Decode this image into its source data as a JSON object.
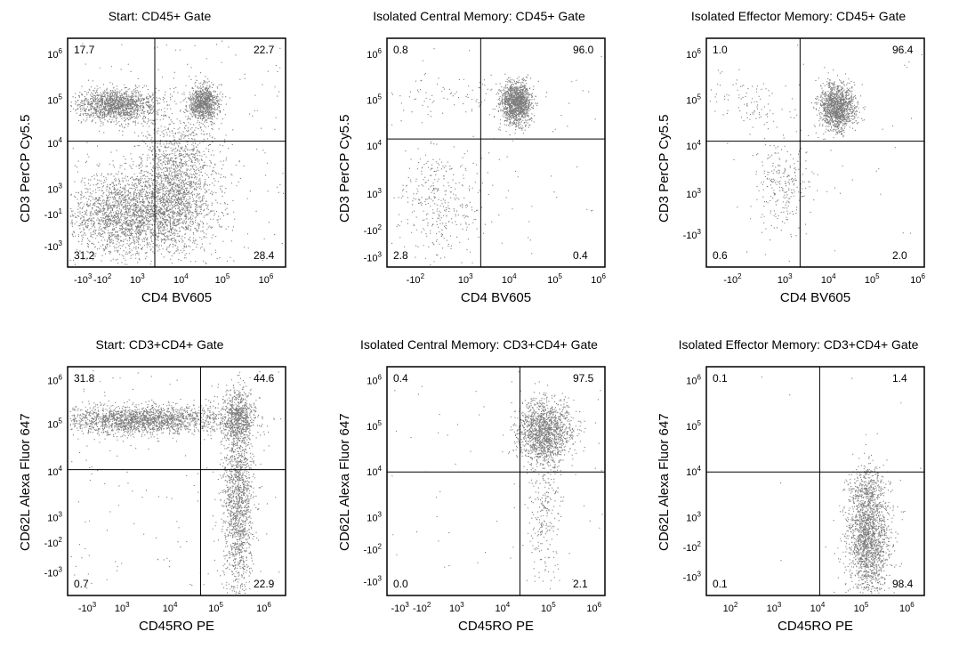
{
  "chart_data": [
    {
      "type": "scatter",
      "title": "Start: CD45+ Gate",
      "xlabel": "CD4 BV605",
      "ylabel": "CD3 PerCP Cy5.5",
      "x_ticks": [
        "-10^3",
        "-10^2",
        "10^3",
        "10^4",
        "10^5",
        "10^6"
      ],
      "y_ticks": [
        "10^6",
        "10^5",
        "10^4",
        "10^3",
        "-10^1",
        "-10^3"
      ],
      "quadrants": {
        "top_left": "17.7",
        "top_right": "22.7",
        "bottom_left": "31.2",
        "bottom_right": "28.4"
      }
    },
    {
      "type": "scatter",
      "title": "Isolated Central Memory: CD45+ Gate",
      "xlabel": "CD4 BV605",
      "ylabel": "CD3 PerCP Cy5.5",
      "x_ticks": [
        "-10^2",
        "10^3",
        "10^4",
        "10^5",
        "10^6"
      ],
      "y_ticks": [
        "10^6",
        "10^5",
        "10^4",
        "10^3",
        "-10^2",
        "-10^3"
      ],
      "quadrants": {
        "top_left": "0.8",
        "top_right": "96.0",
        "bottom_left": "2.8",
        "bottom_right": "0.4"
      }
    },
    {
      "type": "scatter",
      "title": "Isolated Effector Memory: CD45+ Gate",
      "xlabel": "CD4 BV605",
      "ylabel": "CD3 PerCP Cy5.5",
      "x_ticks": [
        "-10^2",
        "10^3",
        "10^4",
        "10^5",
        "10^6"
      ],
      "y_ticks": [
        "10^6",
        "10^5",
        "10^4",
        "10^3",
        "-10^3"
      ],
      "quadrants": {
        "top_left": "1.0",
        "top_right": "96.4",
        "bottom_left": "0.6",
        "bottom_right": "2.0"
      }
    },
    {
      "type": "scatter",
      "title": "Start: CD3+CD4+ Gate",
      "xlabel": "CD45RO PE",
      "ylabel": "CD62L Alexa Fluor 647",
      "x_ticks": [
        "-10^3",
        "10^3",
        "10^4",
        "10^5",
        "10^6"
      ],
      "y_ticks": [
        "10^6",
        "10^5",
        "10^4",
        "10^3",
        "-10^2",
        "-10^3"
      ],
      "quadrants": {
        "top_left": "31.8",
        "top_right": "44.6",
        "bottom_left": "0.7",
        "bottom_right": "22.9"
      }
    },
    {
      "type": "scatter",
      "title": "Isolated Central Memory: CD3+CD4+ Gate",
      "xlabel": "CD45RO PE",
      "ylabel": "CD62L Alexa Fluor 647",
      "x_ticks": [
        "-10^3",
        "-10^2",
        "10^3",
        "10^4",
        "10^5",
        "10^6"
      ],
      "y_ticks": [
        "10^6",
        "10^5",
        "10^4",
        "10^3",
        "-10^2",
        "-10^3"
      ],
      "quadrants": {
        "top_left": "0.4",
        "top_right": "97.5",
        "bottom_left": "0.0",
        "bottom_right": "2.1"
      }
    },
    {
      "type": "scatter",
      "title": "Isolated Effector Memory: CD3+CD4+ Gate",
      "xlabel": "CD45RO PE",
      "ylabel": "CD62L Alexa Fluor 647",
      "x_ticks": [
        "10^2",
        "10^3",
        "10^4",
        "10^5",
        "10^6"
      ],
      "y_ticks": [
        "10^6",
        "10^5",
        "10^4",
        "10^3",
        "-10^2",
        "-10^3"
      ],
      "quadrants": {
        "top_left": "0.1",
        "top_right": "1.4",
        "bottom_left": "0.1",
        "bottom_right": "98.4"
      }
    }
  ]
}
